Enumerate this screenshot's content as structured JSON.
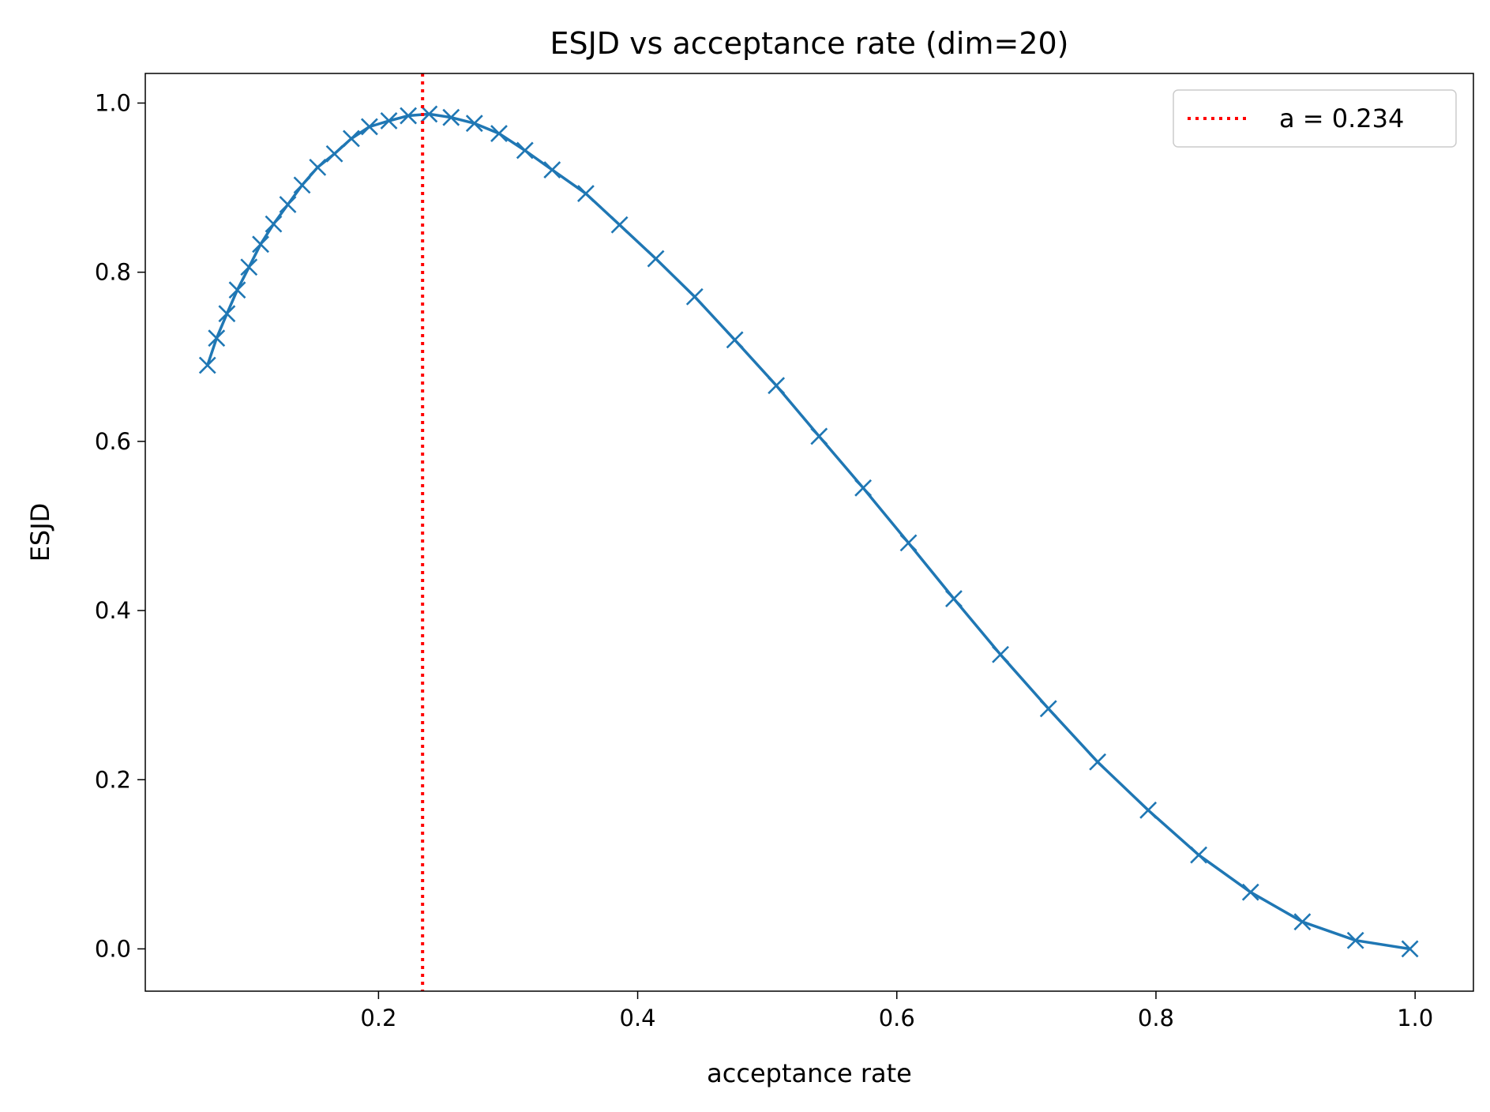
{
  "chart_data": {
    "type": "line",
    "title": "ESJD vs acceptance rate (dim=20)",
    "xlabel": "acceptance rate",
    "ylabel": "ESJD",
    "xlim": [
      0.02,
      1.045
    ],
    "ylim": [
      -0.05,
      1.035
    ],
    "xticks": [
      0.2,
      0.4,
      0.6,
      0.8,
      1.0
    ],
    "xtick_labels": [
      "0.2",
      "0.4",
      "0.6",
      "0.8",
      "1.0"
    ],
    "yticks": [
      0.0,
      0.2,
      0.4,
      0.6,
      0.8,
      1.0
    ],
    "ytick_labels": [
      "0.0",
      "0.2",
      "0.4",
      "0.6",
      "0.8",
      "1.0"
    ],
    "grid": false,
    "legend_position": "top-right",
    "series": [
      {
        "style": "line-with-x-markers",
        "color": "#1f77b4",
        "x": [
          0.068,
          0.075,
          0.083,
          0.091,
          0.1,
          0.109,
          0.119,
          0.13,
          0.141,
          0.153,
          0.166,
          0.179,
          0.193,
          0.208,
          0.223,
          0.239,
          0.256,
          0.274,
          0.293,
          0.313,
          0.334,
          0.36,
          0.386,
          0.414,
          0.444,
          0.475,
          0.507,
          0.54,
          0.574,
          0.609,
          0.644,
          0.68,
          0.717,
          0.755,
          0.794,
          0.833,
          0.873,
          0.913,
          0.954,
          0.996
        ],
        "y": [
          0.69,
          0.722,
          0.751,
          0.779,
          0.806,
          0.833,
          0.857,
          0.88,
          0.903,
          0.924,
          0.94,
          0.958,
          0.972,
          0.979,
          0.985,
          0.987,
          0.983,
          0.976,
          0.964,
          0.944,
          0.921,
          0.893,
          0.856,
          0.816,
          0.771,
          0.72,
          0.666,
          0.606,
          0.545,
          0.48,
          0.414,
          0.348,
          0.284,
          0.221,
          0.164,
          0.111,
          0.067,
          0.032,
          0.01,
          0.0
        ]
      }
    ],
    "reference_line": {
      "label": "a = 0.234",
      "x": 0.234,
      "color": "#ff0000",
      "style": "dotted",
      "orientation": "vertical"
    }
  }
}
